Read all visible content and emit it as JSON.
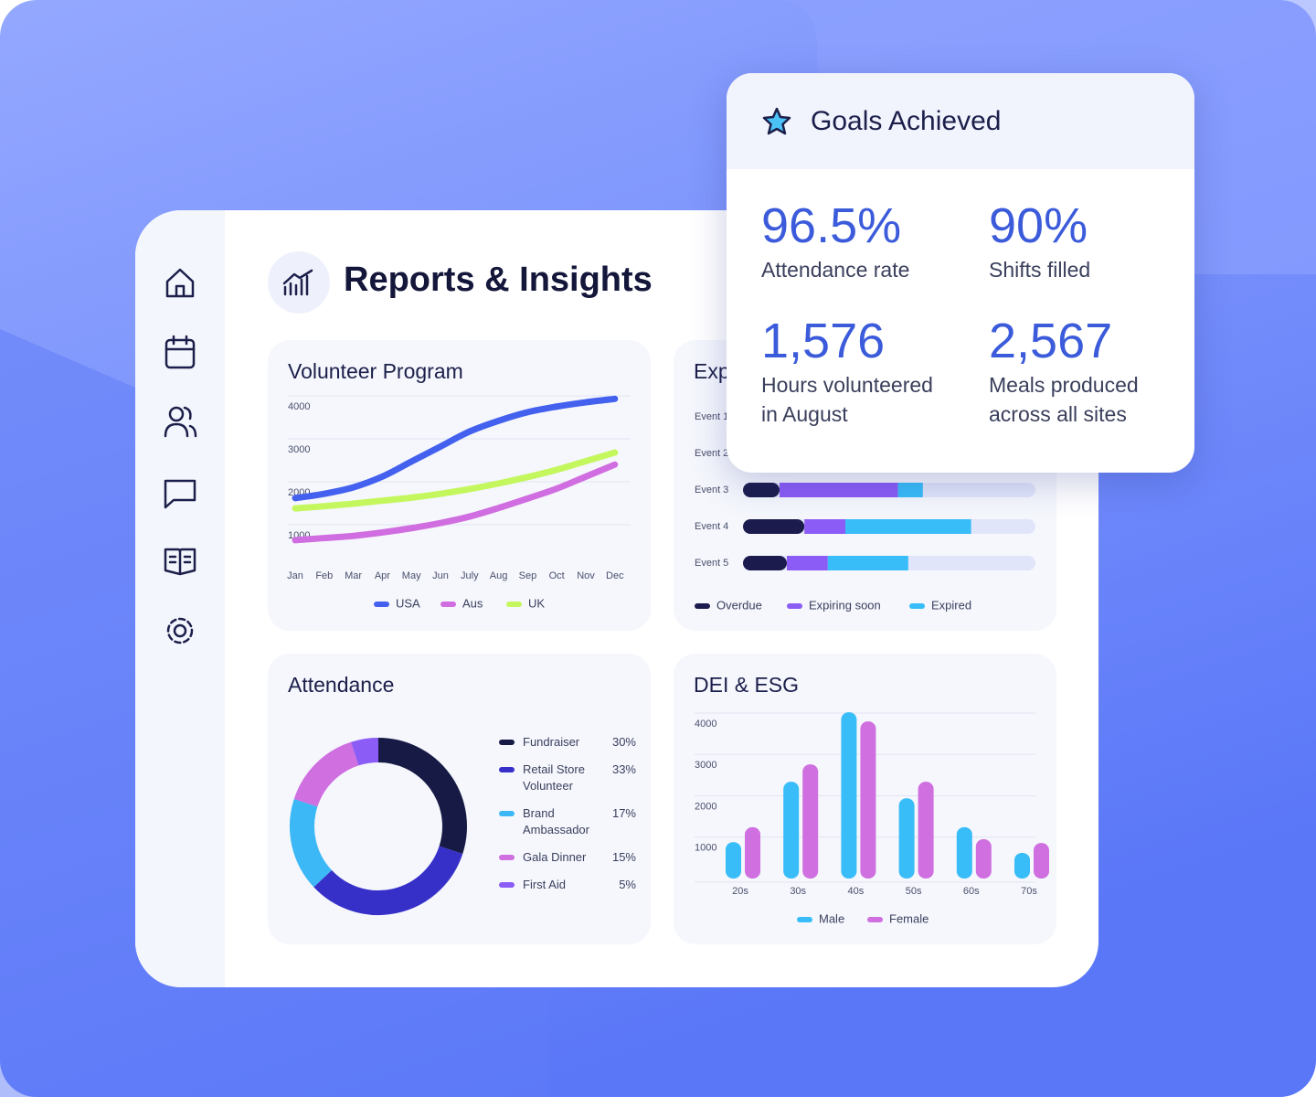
{
  "header": {
    "title": "Reports & Insights"
  },
  "goals": {
    "title": "Goals Achieved",
    "stats": [
      {
        "value": "96.5%",
        "label": "Attendance rate"
      },
      {
        "value": "90%",
        "label": "Shifts filled"
      },
      {
        "value": "1,576",
        "label": "Hours volunteered in August"
      },
      {
        "value": "2,567",
        "label": "Meals produced across all sites"
      }
    ]
  },
  "chart_data": [
    {
      "type": "line",
      "title": "Volunteer Program",
      "categories": [
        "Jan",
        "Feb",
        "Mar",
        "Apr",
        "May",
        "Jun",
        "July",
        "Aug",
        "Sep",
        "Oct",
        "Nov",
        "Dec"
      ],
      "series": [
        {
          "name": "USA",
          "color": "#4361ee",
          "values": [
            1620,
            1720,
            1870,
            2120,
            2470,
            2820,
            3170,
            3420,
            3620,
            3750,
            3850,
            3930
          ]
        },
        {
          "name": "Aus",
          "color": "#d06de0",
          "values": [
            640,
            690,
            740,
            820,
            920,
            1040,
            1190,
            1390,
            1610,
            1840,
            2120,
            2400
          ]
        },
        {
          "name": "UK",
          "color": "#c4f75e",
          "values": [
            1380,
            1430,
            1490,
            1560,
            1630,
            1720,
            1830,
            1960,
            2110,
            2280,
            2480,
            2680
          ]
        }
      ],
      "ylim": [
        0,
        4200
      ],
      "yticks": [
        1000,
        2000,
        3000,
        4000
      ],
      "grid": true
    },
    {
      "type": "bar",
      "orientation": "horizontal",
      "stacked": true,
      "title": "Exp",
      "categories": [
        "Event 1",
        "Event 2",
        "Event 3",
        "Event 4",
        "Event 5"
      ],
      "series": [
        {
          "name": "Overdue",
          "color": "#1b1c4d",
          "values": [
            null,
            null,
            12.5,
            21,
            15
          ]
        },
        {
          "name": "Expiring soon",
          "color": "#8b5cf6",
          "values": [
            null,
            null,
            40.5,
            14,
            14
          ]
        },
        {
          "name": "Expired",
          "color": "#38bdf8",
          "values": [
            null,
            null,
            8.5,
            43,
            27.5
          ]
        }
      ],
      "xlim": [
        0,
        100
      ]
    },
    {
      "type": "pie",
      "donut": true,
      "title": "Attendance",
      "categories": [
        "Fundraiser",
        "Retail Store Volunteer",
        "Brand Ambassador",
        "Gala Dinner",
        "First Aid"
      ],
      "values": [
        30,
        33,
        17,
        15,
        5
      ],
      "value_labels": [
        "30%",
        "33%",
        "17%",
        "15%",
        "5%"
      ],
      "colors": [
        "#171a45",
        "#3730c8",
        "#3bb8f5",
        "#cf6fe0",
        "#8b5cf6"
      ]
    },
    {
      "type": "bar",
      "title": "DEI & ESG",
      "categories": [
        "20s",
        "30s",
        "40s",
        "50s",
        "60s",
        "70s"
      ],
      "series": [
        {
          "name": "Male",
          "color": "#38bdf8",
          "values": [
            880,
            2340,
            4020,
            1940,
            1240,
            620
          ]
        },
        {
          "name": "Female",
          "color": "#cf6fe0",
          "values": [
            1240,
            2760,
            3800,
            2340,
            950,
            860
          ]
        }
      ],
      "ylim": [
        0,
        4200
      ],
      "yticks": [
        1000,
        2000,
        3000,
        4000
      ],
      "grid": true
    }
  ]
}
